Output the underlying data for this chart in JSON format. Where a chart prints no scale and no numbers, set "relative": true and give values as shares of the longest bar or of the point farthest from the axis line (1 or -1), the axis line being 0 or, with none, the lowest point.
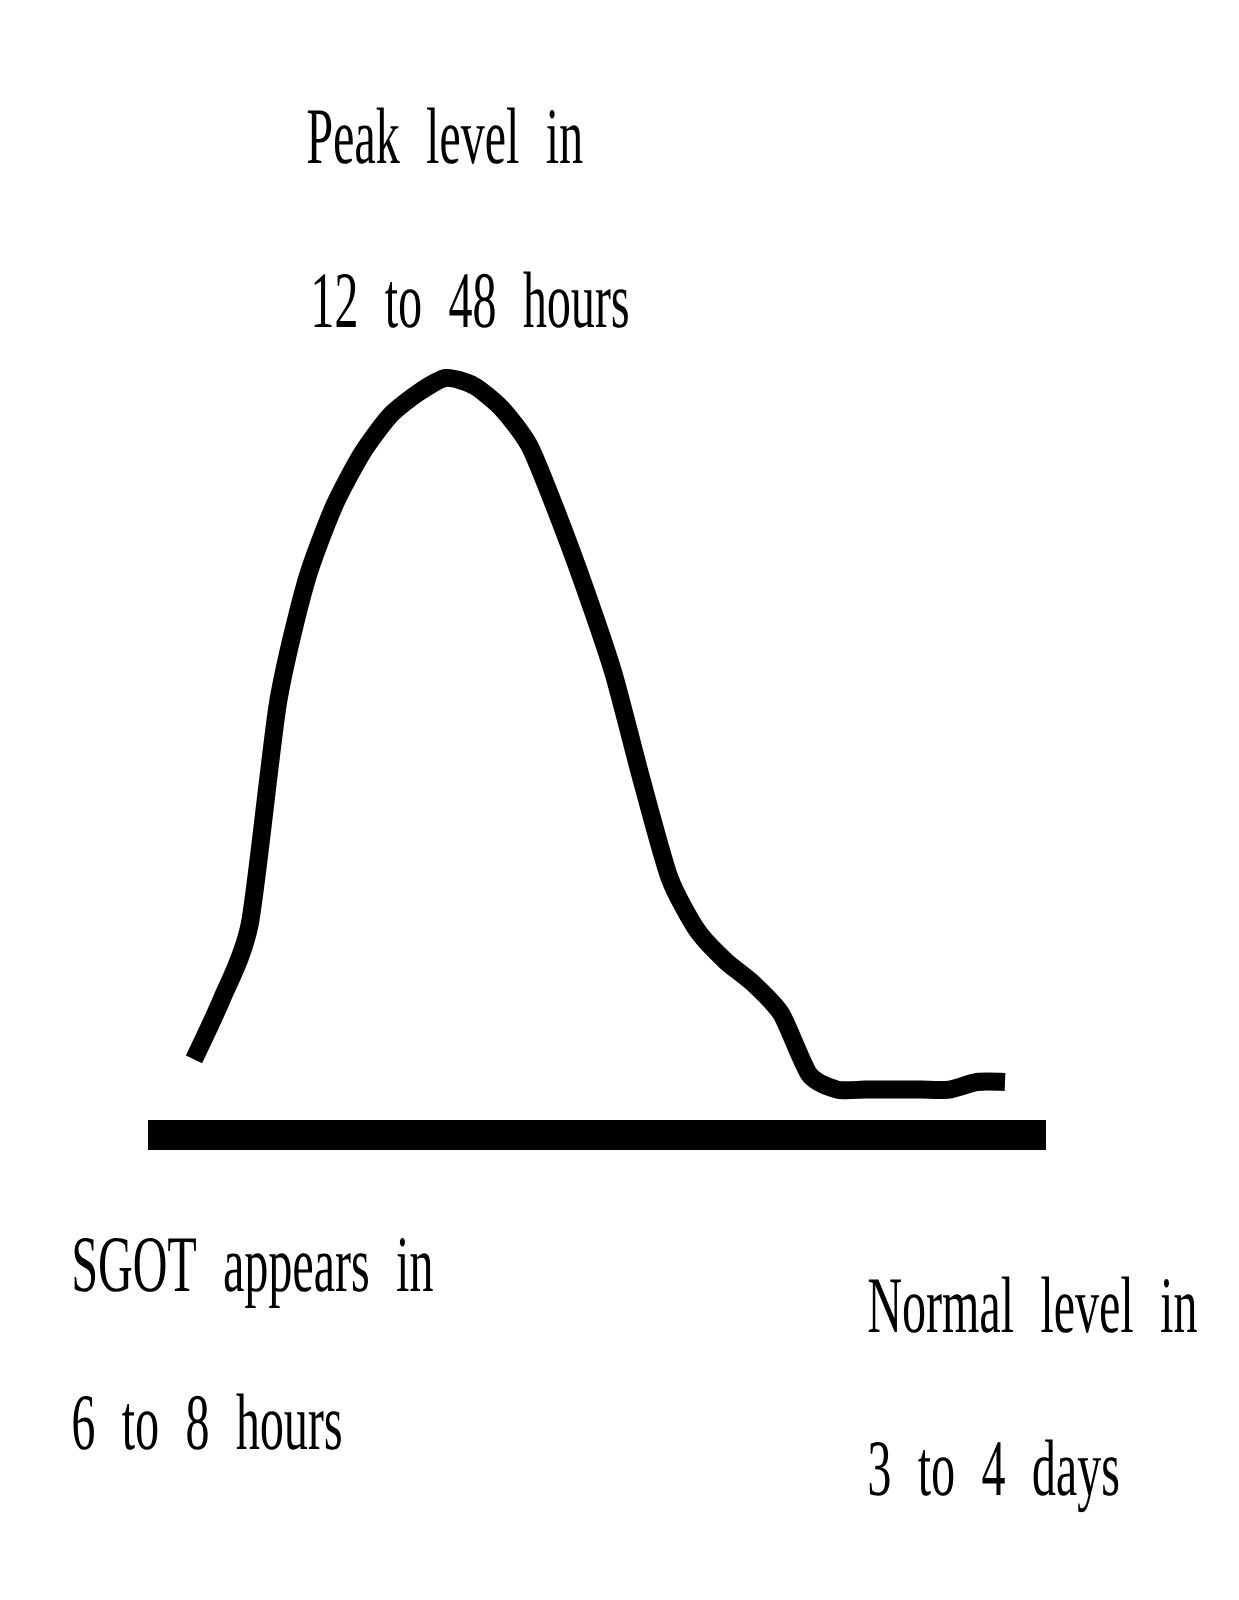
{
  "chart_data": {
    "type": "line",
    "relative": true,
    "color": "#000000",
    "marker": "none",
    "line_style": "solid",
    "categories": [
      null,
      null,
      null,
      null,
      null,
      null,
      null,
      null,
      null,
      null,
      null,
      null,
      null,
      null,
      null,
      null,
      null,
      null,
      null,
      null,
      null,
      null,
      null,
      null,
      null,
      null,
      null,
      null,
      null,
      null
    ],
    "values": [
      0.1,
      0.18,
      0.28,
      0.57,
      0.73,
      0.83,
      0.9,
      0.95,
      0.98,
      1.0,
      0.99,
      0.96,
      0.91,
      0.82,
      0.72,
      0.61,
      0.47,
      0.34,
      0.27,
      0.23,
      0.2,
      0.16,
      0.08,
      0.06,
      0.06,
      0.06,
      0.06,
      0.06,
      0.07,
      0.07
    ],
    "annotations": [
      "Peak level in",
      "12 to 48 hours",
      "SGOT appears in",
      "6 to 8 hours",
      "Normal level in",
      "3 to 4 days"
    ]
  }
}
